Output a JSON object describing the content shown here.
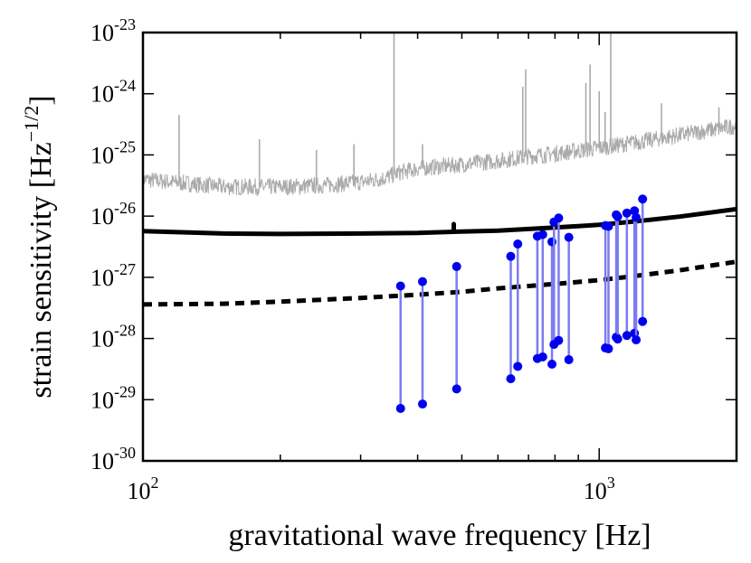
{
  "chart_data": {
    "type": "scatter",
    "xscale": "log",
    "yscale": "log",
    "xlim": [
      100,
      2000
    ],
    "ylim": [
      1e-30,
      1e-23
    ],
    "xlabel": "gravitational wave frequency [Hz]",
    "ylabel_main": "strain sensitivity [Hz",
    "ylabel_exp": "−1/2",
    "ylabel_close": "]",
    "x_ticks": [
      {
        "value": 100,
        "base": "10",
        "exp": "2"
      },
      {
        "value": 1000,
        "base": "10",
        "exp": "3"
      }
    ],
    "y_ticks": [
      {
        "value": 1e-23,
        "base": "10",
        "exp": "-23"
      },
      {
        "value": 1e-24,
        "base": "10",
        "exp": "-24"
      },
      {
        "value": 1e-25,
        "base": "10",
        "exp": "-25"
      },
      {
        "value": 1e-26,
        "base": "10",
        "exp": "-26"
      },
      {
        "value": 1e-27,
        "base": "10",
        "exp": "-27"
      },
      {
        "value": 1e-28,
        "base": "10",
        "exp": "-28"
      },
      {
        "value": 1e-29,
        "base": "10",
        "exp": "-29"
      },
      {
        "value": 1e-30,
        "base": "10",
        "exp": "-30"
      }
    ],
    "noise_curve": {
      "color": "#aaaaaa",
      "base_points": [
        [
          100,
          4e-26
        ],
        [
          120,
          3.5e-26
        ],
        [
          150,
          3e-26
        ],
        [
          200,
          3e-26
        ],
        [
          250,
          3.2e-26
        ],
        [
          300,
          3.6e-26
        ],
        [
          340,
          4.2e-26
        ],
        [
          360,
          5e-26
        ],
        [
          400,
          6e-26
        ],
        [
          500,
          7e-26
        ],
        [
          600,
          8e-26
        ],
        [
          700,
          9.5e-26
        ],
        [
          800,
          1.05e-25
        ],
        [
          1000,
          1.3e-25
        ],
        [
          1200,
          1.6e-25
        ],
        [
          1500,
          2.1e-25
        ],
        [
          2000,
          3e-25
        ]
      ],
      "lines": [
        {
          "f": 120,
          "h": 4.5e-25
        },
        {
          "f": 180,
          "h": 1.8e-25
        },
        {
          "f": 240,
          "h": 1.2e-25
        },
        {
          "f": 290,
          "h": 1.5e-25
        },
        {
          "f": 355,
          "h": 1e-23
        },
        {
          "f": 410,
          "h": 1.5e-25
        },
        {
          "f": 680,
          "h": 1.3e-24
        },
        {
          "f": 690,
          "h": 2.5e-24
        },
        {
          "f": 935,
          "h": 1.5e-24
        },
        {
          "f": 955,
          "h": 3e-24
        },
        {
          "f": 1000,
          "h": 1.1e-24
        },
        {
          "f": 1030,
          "h": 5e-25
        },
        {
          "f": 1060,
          "h": 1e-23
        },
        {
          "f": 1370,
          "h": 7e-25
        },
        {
          "f": 1830,
          "h": 6e-25
        }
      ]
    },
    "series": [
      {
        "name": "solid sensitivity",
        "style": "solid",
        "color": "#000000",
        "points": [
          [
            100,
            5.7e-27
          ],
          [
            150,
            5.2e-27
          ],
          [
            200,
            5.1e-27
          ],
          [
            300,
            5.2e-27
          ],
          [
            400,
            5.3e-27
          ],
          [
            500,
            5.6e-27
          ],
          [
            600,
            5.8e-27
          ],
          [
            800,
            6.5e-27
          ],
          [
            1000,
            7.2e-27
          ],
          [
            1200,
            8.2e-27
          ],
          [
            1500,
            9.8e-27
          ],
          [
            2000,
            1.3e-26
          ]
        ]
      },
      {
        "name": "dashed sensitivity",
        "style": "dashed",
        "color": "#000000",
        "points": [
          [
            100,
            3.6e-28
          ],
          [
            150,
            3.7e-28
          ],
          [
            200,
            4e-28
          ],
          [
            300,
            4.6e-28
          ],
          [
            400,
            5.2e-28
          ],
          [
            500,
            5.8e-28
          ],
          [
            600,
            6.6e-28
          ],
          [
            800,
            7.8e-28
          ],
          [
            1000,
            9e-28
          ],
          [
            1200,
            1.05e-27
          ],
          [
            1500,
            1.3e-27
          ],
          [
            2000,
            1.8e-27
          ]
        ]
      }
    ],
    "pulsars": {
      "color": "#0000ee",
      "line_color": "#7b7bf2",
      "points": [
        {
          "f": 367,
          "high": 7.2e-28,
          "low": 7.2e-30
        },
        {
          "f": 410,
          "high": 8.5e-28,
          "low": 8.5e-30
        },
        {
          "f": 487,
          "high": 1.5e-27,
          "low": 1.5e-29
        },
        {
          "f": 640,
          "high": 2.2e-27,
          "low": 2.2e-29
        },
        {
          "f": 663,
          "high": 3.5e-27,
          "low": 3.5e-29
        },
        {
          "f": 732,
          "high": 4.7e-27,
          "low": 4.7e-29
        },
        {
          "f": 752,
          "high": 5e-27,
          "low": 5e-29
        },
        {
          "f": 788,
          "high": 3.8e-27,
          "low": 3.8e-29
        },
        {
          "f": 796,
          "high": 8e-27,
          "low": 8e-29
        },
        {
          "f": 815,
          "high": 9.3e-27,
          "low": 9.3e-29
        },
        {
          "f": 858,
          "high": 4.5e-27,
          "low": 4.5e-29
        },
        {
          "f": 1032,
          "high": 7e-27,
          "low": 7e-29
        },
        {
          "f": 1048,
          "high": 6.8e-27,
          "low": 6.8e-29
        },
        {
          "f": 1090,
          "high": 1.05e-26,
          "low": 1.05e-28
        },
        {
          "f": 1098,
          "high": 9.8e-27,
          "low": 9.8e-29
        },
        {
          "f": 1150,
          "high": 1.12e-26,
          "low": 1.12e-28
        },
        {
          "f": 1195,
          "high": 1.22e-26,
          "low": 1.22e-28
        },
        {
          "f": 1205,
          "high": 9.5e-27,
          "low": 9.5e-29
        },
        {
          "f": 1245,
          "high": 1.9e-26,
          "low": 1.9e-28
        }
      ]
    }
  }
}
